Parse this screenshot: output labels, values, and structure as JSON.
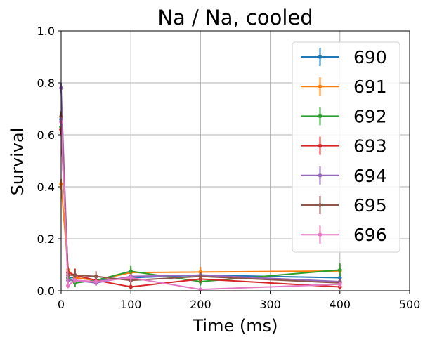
{
  "chart_data": {
    "type": "line",
    "title": "Na / Na, cooled",
    "xlabel": "Time (ms)",
    "ylabel": "Survival",
    "xlim": [
      0,
      500
    ],
    "ylim": [
      0,
      1.0
    ],
    "xticks": [
      "0",
      "100",
      "200",
      "300",
      "400",
      "500"
    ],
    "yticks": [
      "0.0",
      "0.2",
      "0.4",
      "0.6",
      "0.8",
      "1.0"
    ],
    "grid": true,
    "legend_position": "top-right",
    "series": [
      {
        "name": "690",
        "color": "#1f77b4",
        "x": [
          0,
          10,
          20,
          50,
          100,
          200,
          400
        ],
        "y": [
          0.66,
          0.05,
          0.05,
          0.04,
          0.05,
          0.06,
          0.05
        ],
        "yerr": [
          0.02,
          0.01,
          0.01,
          0.01,
          0.01,
          0.01,
          0.01
        ]
      },
      {
        "name": "691",
        "color": "#ff7f0e",
        "x": [
          0,
          10,
          20,
          50,
          100,
          200,
          400
        ],
        "y": [
          0.41,
          0.08,
          0.05,
          0.04,
          0.07,
          0.072,
          0.076
        ],
        "yerr": [
          0.02,
          0.015,
          0.015,
          0.015,
          0.02,
          0.02,
          0.02
        ]
      },
      {
        "name": "692",
        "color": "#2ca02c",
        "x": [
          0,
          10,
          20,
          50,
          100,
          200,
          400
        ],
        "y": [
          0.63,
          0.05,
          0.03,
          0.04,
          0.075,
          0.035,
          0.08
        ],
        "yerr": [
          0.02,
          0.015,
          0.015,
          0.015,
          0.02,
          0.015,
          0.025
        ]
      },
      {
        "name": "693",
        "color": "#d62728",
        "x": [
          0,
          10,
          20,
          50,
          100,
          200,
          400
        ],
        "y": [
          0.62,
          0.07,
          0.06,
          0.04,
          0.015,
          0.045,
          0.015
        ],
        "yerr": [
          0.02,
          0.02,
          0.025,
          0.02,
          0.01,
          0.015,
          0.01
        ]
      },
      {
        "name": "694",
        "color": "#9467bd",
        "x": [
          0,
          10,
          20,
          50,
          100,
          200,
          400
        ],
        "y": [
          0.78,
          0.04,
          0.04,
          0.03,
          0.055,
          0.06,
          0.035
        ],
        "yerr": [
          0.02,
          0.01,
          0.01,
          0.01,
          0.01,
          0.01,
          0.01
        ]
      },
      {
        "name": "695",
        "color": "#8c564b",
        "x": [
          0,
          10,
          20,
          50,
          100,
          200,
          400
        ],
        "y": [
          0.67,
          0.06,
          0.06,
          0.055,
          0.04,
          0.055,
          0.03
        ],
        "yerr": [
          0.02,
          0.02,
          0.02,
          0.02,
          0.015,
          0.015,
          0.015
        ]
      },
      {
        "name": "696",
        "color": "#e377c2",
        "x": [
          0,
          10,
          20,
          50,
          100,
          200,
          400
        ],
        "y": [
          0.65,
          0.02,
          0.04,
          0.035,
          0.05,
          0.005,
          0.025
        ],
        "yerr": [
          0.02,
          0.01,
          0.01,
          0.01,
          0.015,
          0.005,
          0.01
        ]
      }
    ]
  }
}
